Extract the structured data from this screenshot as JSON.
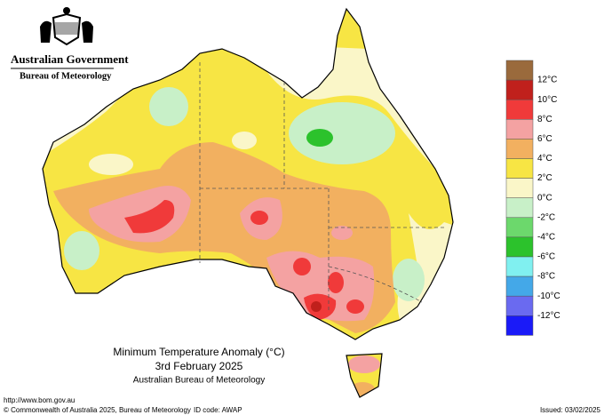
{
  "header": {
    "government": "Australian Government",
    "bureau": "Bureau of Meteorology"
  },
  "title": {
    "line1": "Minimum Temperature Anomaly (°C)",
    "line2": "3rd February 2025",
    "line3": "Australian Bureau of Meteorology"
  },
  "legend": {
    "colors": [
      "#9a6a3c",
      "#c0201c",
      "#f03a3a",
      "#f4a2a2",
      "#f2b060",
      "#f7e544",
      "#faf6c8",
      "#c8f0c8",
      "#6cd86c",
      "#2cc22c",
      "#80f0f0",
      "#44a8e8",
      "#6a6af0",
      "#1a1af8"
    ],
    "labels": [
      "12°C",
      "10°C",
      "8°C",
      "6°C",
      "4°C",
      "2°C",
      "0°C",
      "-2°C",
      "-4°C",
      "-6°C",
      "-8°C",
      "-10°C",
      "-12°C"
    ]
  },
  "footer": {
    "url": "http://www.bom.gov.au",
    "copyright": "© Commonwealth of Australia 2025, Bureau of Meteorology",
    "id_code": "ID code: AWAP",
    "issued": "Issued: 03/02/2025"
  }
}
